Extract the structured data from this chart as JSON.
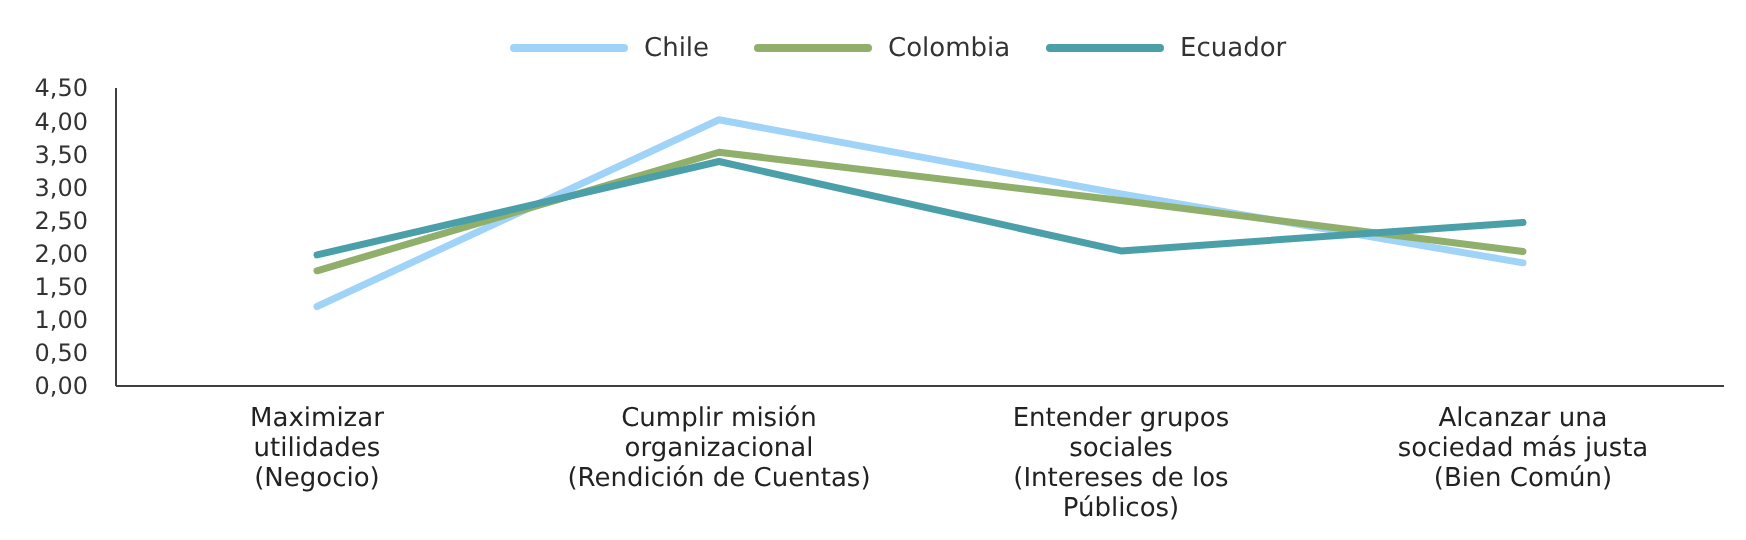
{
  "chart_data": {
    "type": "line",
    "categories": [
      "Maximizar\nutilidades\n(Negocio)",
      "Cumplir misión\norganizacional\n(Rendición de Cuentas)",
      "Entender grupos\nsociales\n(Intereses de los\nPúblicos)",
      "Alcanzar una\nsociedad más justa\n(Bien Común)"
    ],
    "series": [
      {
        "name": "Chile",
        "color": "#9fd3f7",
        "values": [
          1.2,
          4.02,
          2.9,
          1.86
        ]
      },
      {
        "name": "Colombia",
        "color": "#8faf6a",
        "values": [
          1.74,
          3.53,
          2.8,
          2.03
        ]
      },
      {
        "name": "Ecuador",
        "color": "#4a9fa8",
        "values": [
          1.98,
          3.39,
          2.04,
          2.47
        ]
      }
    ],
    "ylim": [
      0,
      4.5
    ],
    "yticks": [
      {
        "value": 0,
        "label": "0,00"
      },
      {
        "value": 0.5,
        "label": "0,50"
      },
      {
        "value": 1,
        "label": "1,00"
      },
      {
        "value": 1.5,
        "label": "1,50"
      },
      {
        "value": 2,
        "label": "2,00"
      },
      {
        "value": 2.5,
        "label": "2,50"
      },
      {
        "value": 3,
        "label": "3,00"
      },
      {
        "value": 3.5,
        "label": "3,50"
      },
      {
        "value": 4,
        "label": "4,00"
      },
      {
        "value": 4.5,
        "label": "4,50"
      }
    ],
    "legend": "top",
    "grid": false,
    "marker": "none",
    "line_style": "solid"
  }
}
